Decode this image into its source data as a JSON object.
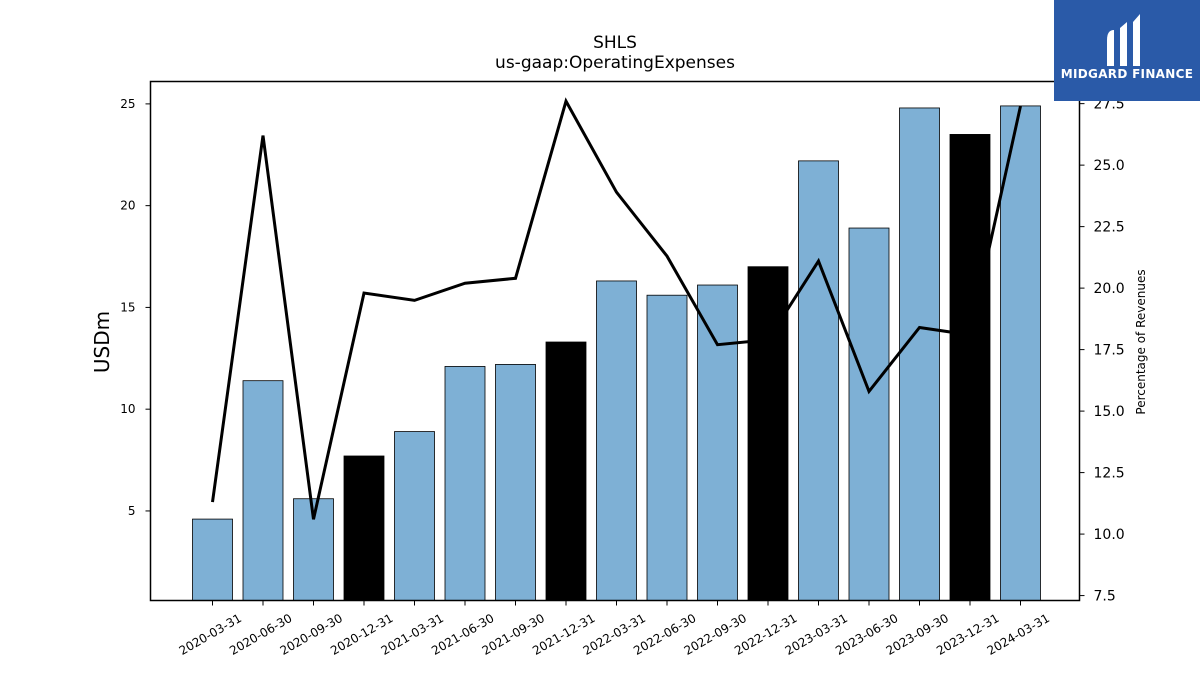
{
  "brand": {
    "name": "MIDGARD FINANCE",
    "color": "#2a5aa8"
  },
  "chart_data": {
    "type": "bar",
    "title": "SHLS",
    "subtitle": "us-gaap:OperatingExpenses",
    "ylabel": "USDm",
    "y2label": "Percentage of Revenues",
    "categories": [
      "2020-03-31",
      "2020-06-30",
      "2020-09-30",
      "2020-12-31",
      "2021-03-31",
      "2021-06-30",
      "2021-09-30",
      "2021-12-31",
      "2022-03-31",
      "2022-06-30",
      "2022-09-30",
      "2022-12-31",
      "2023-03-31",
      "2023-06-30",
      "2023-09-30",
      "2023-12-31",
      "2024-03-31"
    ],
    "series": [
      {
        "type": "bar",
        "values": [
          4.6,
          11.4,
          5.6,
          7.7,
          8.9,
          12.1,
          12.2,
          13.3,
          16.3,
          15.6,
          16.1,
          17.0,
          22.2,
          18.9,
          24.8,
          23.5,
          24.9
        ],
        "colors": [
          "#7eb0d5",
          "#7eb0d5",
          "#7eb0d5",
          "#000000",
          "#7eb0d5",
          "#7eb0d5",
          "#7eb0d5",
          "#000000",
          "#7eb0d5",
          "#7eb0d5",
          "#7eb0d5",
          "#000000",
          "#7eb0d5",
          "#7eb0d5",
          "#7eb0d5",
          "#000000",
          "#7eb0d5"
        ]
      },
      {
        "type": "line",
        "axis": "right",
        "color": "#000000",
        "values": [
          11.3,
          26.2,
          10.6,
          19.8,
          19.5,
          20.2,
          20.4,
          27.6,
          23.9,
          21.3,
          17.7,
          17.9,
          21.1,
          15.8,
          18.4,
          18.1,
          27.4
        ]
      }
    ],
    "ylim": [
      0.6,
      26.1
    ],
    "y2lim": [
      7.3,
      28.4
    ],
    "yticks": [
      5,
      10,
      15,
      20,
      25
    ],
    "y2ticks": [
      "7.5",
      "10.0",
      "12.5",
      "15.0",
      "17.5",
      "20.0",
      "22.5",
      "25.0",
      "27.5"
    ],
    "grid": false,
    "legend": "none"
  }
}
